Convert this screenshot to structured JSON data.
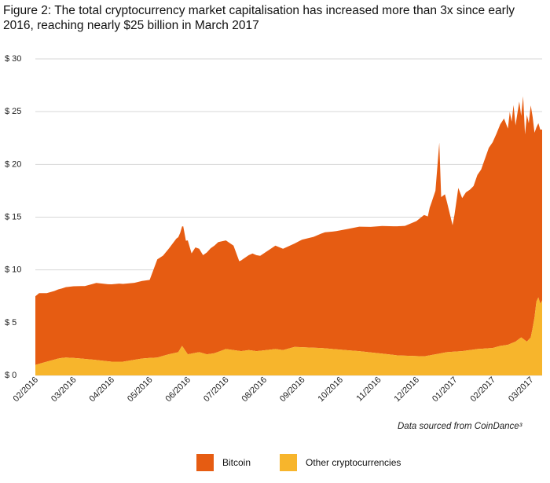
{
  "title": "Figure 2: The total cryptocurrency market capitalisation has increased more than 3x since early 2016, reaching nearly $25 billion in March 2017",
  "source_note": "Data sourced from CoinDance³",
  "colors": {
    "bitcoin": "#e65c12",
    "other": "#f7b52c",
    "grid": "#d7d7d7"
  },
  "chart_data": {
    "type": "area",
    "stacked": true,
    "ylim": [
      0,
      30
    ],
    "yticks": [
      0,
      5,
      10,
      15,
      20,
      25,
      30
    ],
    "ytick_labels": [
      "$ 0",
      "$ 5",
      "$ 10",
      "$ 15",
      "$ 20",
      "$ 25",
      "$ 30"
    ],
    "xlim": [
      1,
      14.3
    ],
    "xticks": [
      1,
      2,
      3,
      4,
      5,
      6,
      7,
      8,
      9,
      10,
      11,
      12,
      13,
      14
    ],
    "xtick_labels": [
      "02/2016",
      "03/2016",
      "04/2016",
      "05/2016",
      "06/2016",
      "07/2016",
      "08/2016",
      "09/2016",
      "10/2016",
      "11/2016",
      "12/2016",
      "01/2017",
      "02/2017",
      "03/2017"
    ],
    "grid": true,
    "legend_position": "bottom",
    "series": [
      {
        "name": "Other cryptocurrencies",
        "x": [
          1,
          1.1,
          1.3,
          1.6,
          1.8,
          2.2,
          2.5,
          3.0,
          3.3,
          3.8,
          4.2,
          4.5,
          4.75,
          4.85,
          5.0,
          5.3,
          5.5,
          5.7,
          6.0,
          6.4,
          6.6,
          6.8,
          7.3,
          7.5,
          7.8,
          8.5,
          8.8,
          9.5,
          10.0,
          10.5,
          11.2,
          11.5,
          11.8,
          12.2,
          12.6,
          13.0,
          13.2,
          13.4,
          13.6,
          13.75,
          13.9,
          14.0,
          14.05,
          14.1,
          14.15,
          14.2,
          14.25,
          14.3
        ],
        "values": [
          1.0,
          1.1,
          1.3,
          1.6,
          1.7,
          1.6,
          1.5,
          1.3,
          1.3,
          1.6,
          1.7,
          2.0,
          2.2,
          2.8,
          2.0,
          2.2,
          2.0,
          2.1,
          2.5,
          2.3,
          2.4,
          2.3,
          2.5,
          2.4,
          2.7,
          2.6,
          2.5,
          2.3,
          2.1,
          1.9,
          1.8,
          2.0,
          2.2,
          2.3,
          2.5,
          2.6,
          2.8,
          2.9,
          3.2,
          3.6,
          3.2,
          3.6,
          4.5,
          5.5,
          7.0,
          7.4,
          6.8,
          7.1
        ]
      },
      {
        "name": "Bitcoin",
        "x": [
          1,
          1.1,
          1.3,
          1.5,
          1.7,
          2.0,
          2.3,
          2.6,
          2.9,
          3.2,
          3.6,
          4.0,
          4.2,
          4.35,
          4.5,
          4.7,
          4.8,
          4.88,
          4.95,
          5.0,
          5.1,
          5.2,
          5.3,
          5.4,
          5.6,
          5.8,
          6.0,
          6.2,
          6.35,
          6.45,
          6.7,
          6.9,
          7.2,
          7.3,
          7.5,
          7.8,
          8.0,
          8.3,
          8.6,
          8.9,
          9.2,
          9.5,
          9.8,
          10.1,
          10.4,
          10.7,
          11.0,
          11.2,
          11.3,
          11.35,
          11.4,
          11.5,
          11.6,
          11.65,
          11.75,
          11.85,
          11.95,
          12.0,
          12.1,
          12.2,
          12.3,
          12.4,
          12.5,
          12.6,
          12.7,
          12.8,
          12.9,
          13.0,
          13.1,
          13.2,
          13.3,
          13.4,
          13.45,
          13.5,
          13.55,
          13.6,
          13.7,
          13.75,
          13.8,
          13.85,
          13.9,
          13.95,
          14.0,
          14.05,
          14.1,
          14.15,
          14.2,
          14.25,
          14.3
        ],
        "values": [
          6.5,
          6.7,
          6.5,
          6.5,
          6.6,
          6.8,
          6.9,
          7.3,
          7.3,
          7.4,
          7.3,
          7.4,
          9.3,
          9.5,
          10.0,
          10.8,
          11.0,
          11.5,
          10.5,
          10.8,
          9.5,
          10.0,
          9.8,
          9.3,
          10.0,
          10.4,
          10.3,
          9.9,
          8.5,
          8.7,
          9.2,
          9.0,
          9.6,
          9.8,
          9.6,
          9.8,
          10.2,
          10.5,
          11.0,
          11.2,
          11.5,
          11.8,
          11.9,
          12.1,
          12.2,
          12.3,
          12.8,
          13.4,
          13.2,
          14.0,
          14.5,
          15.5,
          20.0,
          14.8,
          15.0,
          13.5,
          12.0,
          13.0,
          15.5,
          14.5,
          15.0,
          15.2,
          15.5,
          16.5,
          17.0,
          18.0,
          19.0,
          19.5,
          20.2,
          21.0,
          21.5,
          20.5,
          22.0,
          21.0,
          22.5,
          20.5,
          22.5,
          21.0,
          23.0,
          19.5,
          21.5,
          20.5,
          22.0,
          20.0,
          17.5,
          16.5,
          16.5,
          16.5,
          16.2
        ]
      }
    ]
  },
  "legend": [
    {
      "label": "Bitcoin",
      "color": "#e65c12"
    },
    {
      "label": "Other cryptocurrencies",
      "color": "#f7b52c"
    }
  ]
}
